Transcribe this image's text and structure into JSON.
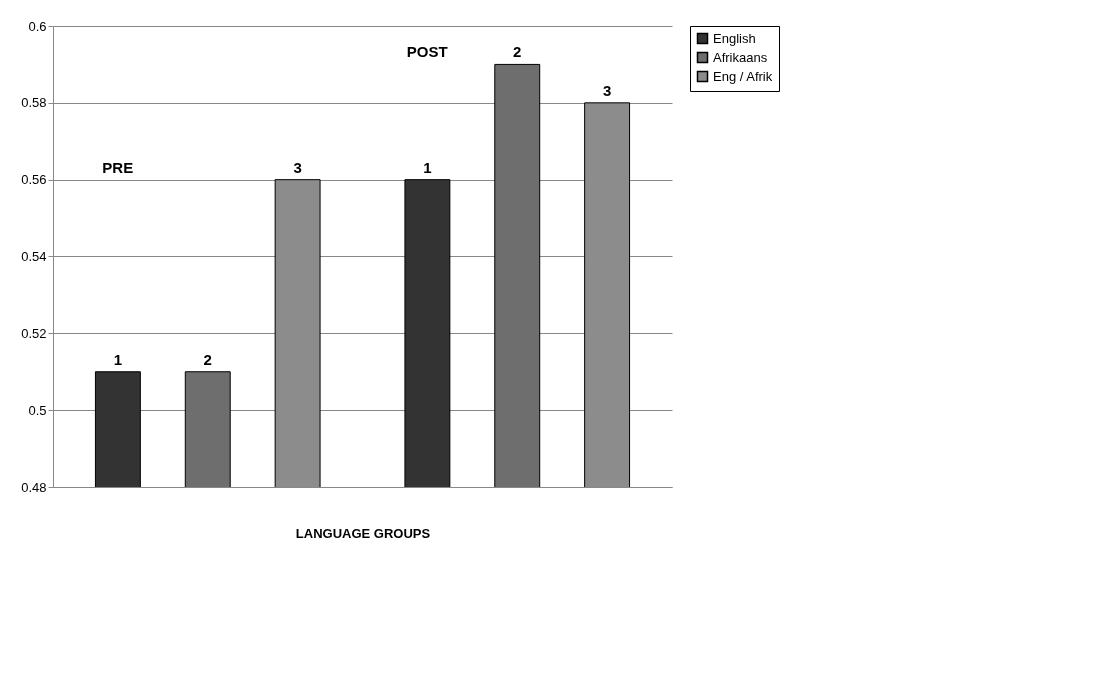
{
  "chart_data": {
    "type": "bar",
    "xlabel": "LANGUAGE GROUPS",
    "categories": [
      null,
      null
    ],
    "series": [
      {
        "name": "English",
        "color": "#333333",
        "values": [
          0.51,
          0.56
        ]
      },
      {
        "name": "Afrikaans",
        "color": "#6e6e6e",
        "values": [
          0.51,
          0.59
        ]
      },
      {
        "name": "Eng / Afrik",
        "color": "#8c8c8c",
        "values": [
          0.56,
          0.58
        ]
      }
    ],
    "ylim": [
      0.48,
      0.6
    ],
    "yticks": [
      0.48,
      0.5,
      0.52,
      0.54,
      0.56,
      0.58,
      0.6
    ],
    "grid": "y",
    "legend": "right",
    "tick_labels": "y",
    "annotations": [
      "PRE",
      "POST",
      "1",
      "2",
      "3",
      "1",
      "2",
      "3"
    ]
  }
}
